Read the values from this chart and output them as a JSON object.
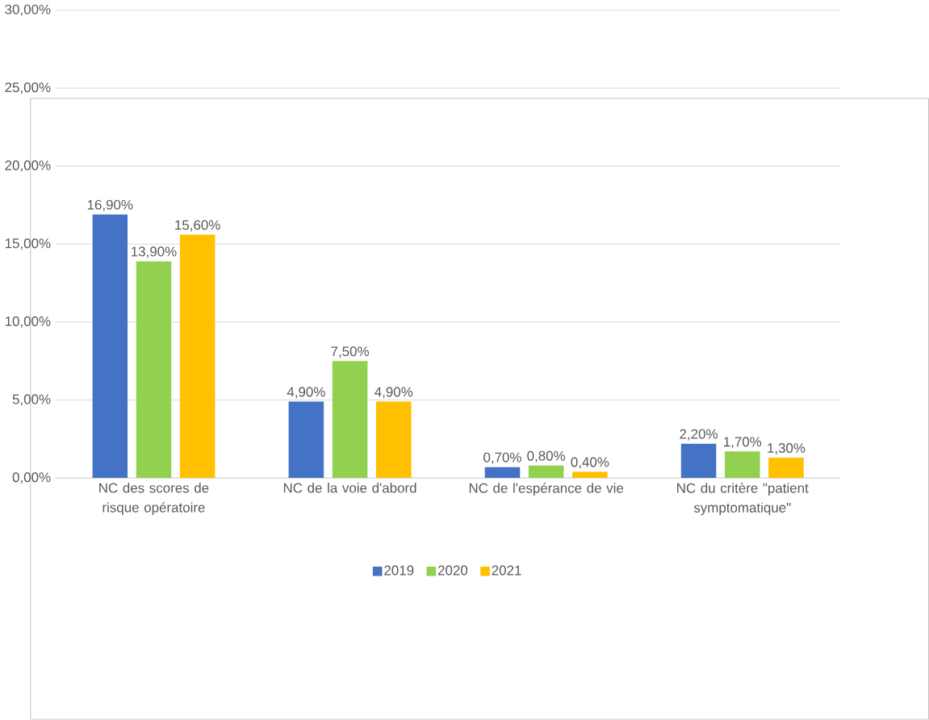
{
  "chart_data": {
    "type": "bar",
    "categories": [
      "NC des scores de risque opératoire",
      "NC de la voie d'abord",
      "NC de l'espérance de vie",
      "NC du critère \"patient symptomatique\""
    ],
    "series": [
      {
        "name": "2019",
        "color": "#4472c4",
        "values": [
          16.9,
          4.9,
          0.7,
          2.2
        ],
        "value_labels": [
          "16,90%",
          "4,90%",
          "0,70%",
          "2,20%"
        ]
      },
      {
        "name": "2020",
        "color": "#92d050",
        "values": [
          13.9,
          7.5,
          0.8,
          1.7
        ],
        "value_labels": [
          "13,90%",
          "7,50%",
          "0,80%",
          "1,70%"
        ]
      },
      {
        "name": "2021",
        "color": "#ffc000",
        "values": [
          15.6,
          4.9,
          0.4,
          1.3
        ],
        "value_labels": [
          "15,60%",
          "4,90%",
          "0,40%",
          "1,30%"
        ]
      }
    ],
    "ylim": [
      0,
      30
    ],
    "yticks": [
      {
        "value": 0,
        "label": "0,00%"
      },
      {
        "value": 5,
        "label": "5,00%"
      },
      {
        "value": 10,
        "label": "10,00%"
      },
      {
        "value": 15,
        "label": "15,00%"
      },
      {
        "value": 20,
        "label": "20,00%"
      },
      {
        "value": 25,
        "label": "25,00%"
      },
      {
        "value": 30,
        "label": "30,00%"
      }
    ],
    "grid": "y",
    "legend": "bottom"
  }
}
